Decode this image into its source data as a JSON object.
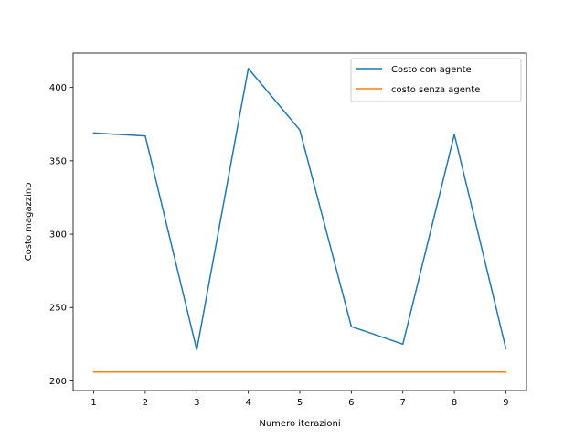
{
  "chart_data": {
    "type": "line",
    "title": "",
    "xlabel": "Numero iterazioni",
    "ylabel": "Costo magazzino",
    "x": [
      1,
      2,
      3,
      4,
      5,
      6,
      7,
      8,
      9
    ],
    "xlim": [
      0.6,
      9.4
    ],
    "ylim": [
      193.4,
      423.5
    ],
    "xticks": [
      1,
      2,
      3,
      4,
      5,
      6,
      7,
      8,
      9
    ],
    "yticks": [
      200,
      250,
      300,
      350,
      400
    ],
    "grid": false,
    "legend_position": "upper right",
    "series": [
      {
        "name": "Costo con agente",
        "color": "#1f77b4",
        "values": [
          369,
          367,
          221,
          413,
          371,
          237,
          225,
          368,
          222
        ]
      },
      {
        "name": "costo senza agente",
        "color": "#ff7f0e",
        "values": [
          206,
          206,
          206,
          206,
          206,
          206,
          206,
          206,
          206
        ]
      }
    ]
  }
}
